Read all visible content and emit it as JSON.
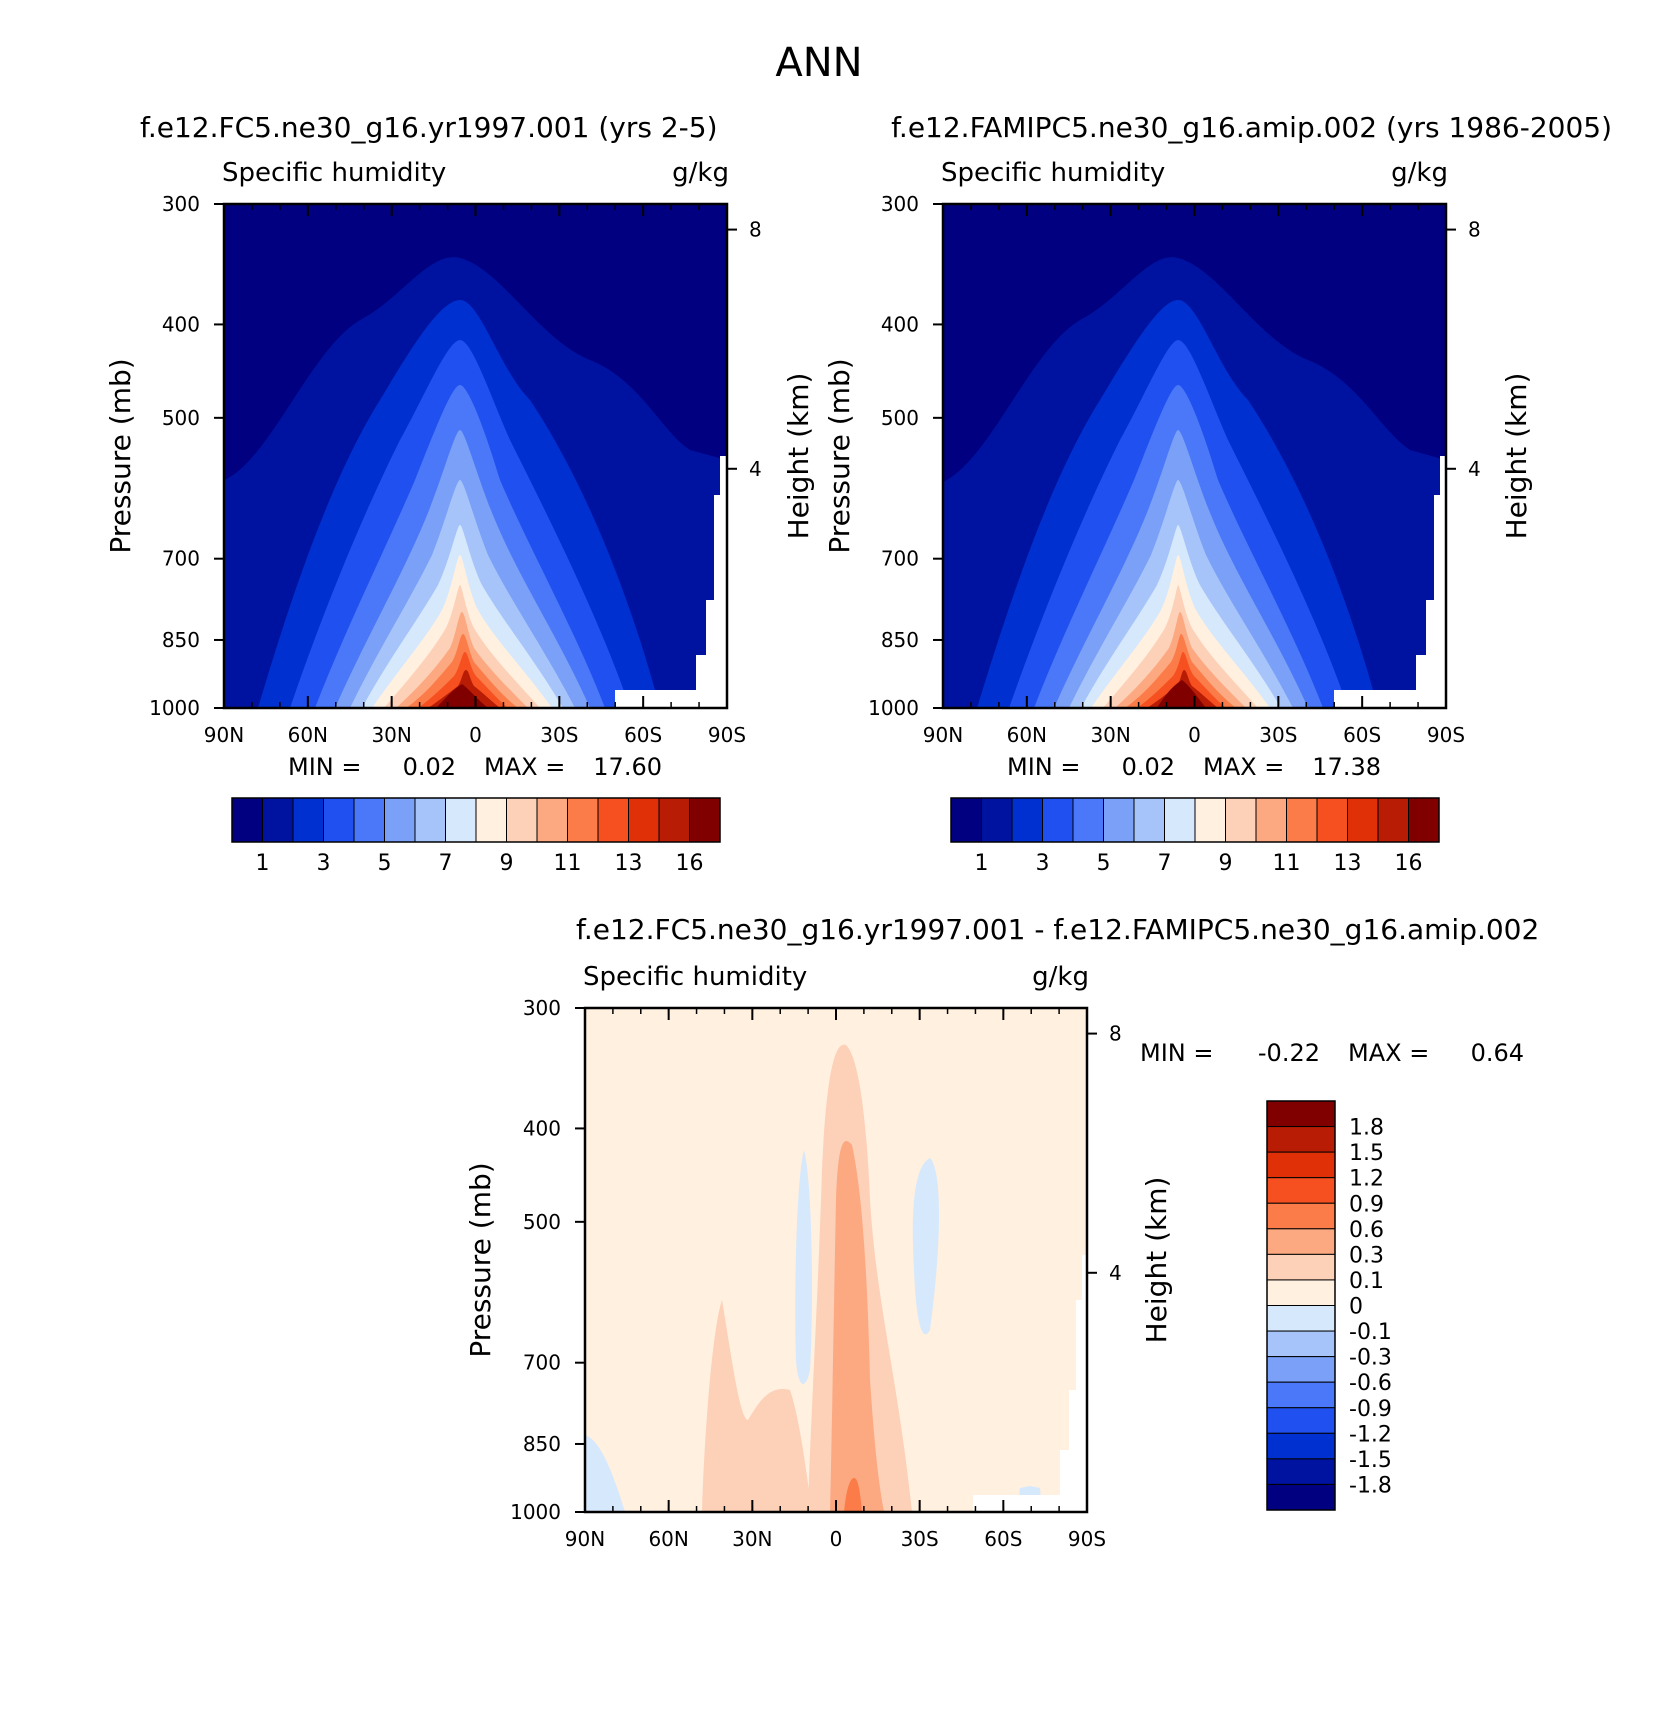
{
  "figure": {
    "title": "ANN"
  },
  "colors": {
    "abs_scale": [
      "#000080",
      "#0013a0",
      "#0030d0",
      "#2050f0",
      "#4a78f8",
      "#7aa0f8",
      "#a6c4fa",
      "#d6e8fc",
      "#fff0e0",
      "#fdd0b8",
      "#fca880",
      "#fb7c48",
      "#f75020",
      "#e03008",
      "#b81c04",
      "#800000"
    ],
    "diff_scale": [
      "#800000",
      "#b81c04",
      "#e03008",
      "#f75020",
      "#fb7c48",
      "#fca880",
      "#fdd0b8",
      "#fff0e0",
      "#d6e8fc",
      "#a6c4fa",
      "#7aa0f8",
      "#4a78f8",
      "#2050f0",
      "#0030d0",
      "#0013a0",
      "#000080"
    ]
  },
  "chart_data": [
    {
      "type": "heatmap",
      "title": "f.e12.FC5.ne30_g16.yr1997.001 (yrs 2-5)",
      "left_label": "Specific humidity",
      "right_label": "g/kg",
      "xlabel": "",
      "ylabel": "Pressure (mb)",
      "y2label": "Height (km)",
      "x_ticks": [
        "90N",
        "60N",
        "30N",
        "0",
        "30S",
        "60S",
        "90S"
      ],
      "y_ticks": [
        "300",
        "400",
        "500",
        "700",
        "850",
        "1000"
      ],
      "y2_ticks": [
        "8",
        "4"
      ],
      "stats": {
        "min_label": "MIN =",
        "min": "0.02",
        "max_label": "MAX =",
        "max": "17.60"
      },
      "levels": [
        "1",
        "3",
        "5",
        "7",
        "9",
        "11",
        "13",
        "16"
      ],
      "ylim": [
        1000,
        300
      ]
    },
    {
      "type": "heatmap",
      "title": "f.e12.FAMIPC5.ne30_g16.amip.002 (yrs 1986-2005)",
      "left_label": "Specific humidity",
      "right_label": "g/kg",
      "xlabel": "",
      "ylabel": "Pressure (mb)",
      "y2label": "Height (km)",
      "x_ticks": [
        "90N",
        "60N",
        "30N",
        "0",
        "30S",
        "60S",
        "90S"
      ],
      "y_ticks": [
        "300",
        "400",
        "500",
        "700",
        "850",
        "1000"
      ],
      "y2_ticks": [
        "8",
        "4"
      ],
      "stats": {
        "min_label": "MIN =",
        "min": "0.02",
        "max_label": "MAX =",
        "max": "17.38"
      },
      "levels": [
        "1",
        "3",
        "5",
        "7",
        "9",
        "11",
        "13",
        "16"
      ],
      "ylim": [
        1000,
        300
      ]
    },
    {
      "type": "heatmap",
      "title": "f.e12.FC5.ne30_g16.yr1997.001 - f.e12.FAMIPC5.ne30_g16.amip.002",
      "left_label": "Specific humidity",
      "right_label": "g/kg",
      "xlabel": "",
      "ylabel": "Pressure (mb)",
      "y2label": "Height (km)",
      "x_ticks": [
        "90N",
        "60N",
        "30N",
        "0",
        "30S",
        "60S",
        "90S"
      ],
      "y_ticks": [
        "300",
        "400",
        "500",
        "700",
        "850",
        "1000"
      ],
      "y2_ticks": [
        "8",
        "4"
      ],
      "stats": {
        "min_label": "MIN =",
        "min": "-0.22",
        "max_label": "MAX =",
        "max": "0.64"
      },
      "levels": [
        "1.8",
        "1.5",
        "1.2",
        "0.9",
        "0.6",
        "0.3",
        "0.1",
        "0",
        "-0.1",
        "-0.3",
        "-0.6",
        "-0.9",
        "-1.2",
        "-1.5",
        "-1.8"
      ],
      "ylim": [
        1000,
        300
      ]
    }
  ]
}
